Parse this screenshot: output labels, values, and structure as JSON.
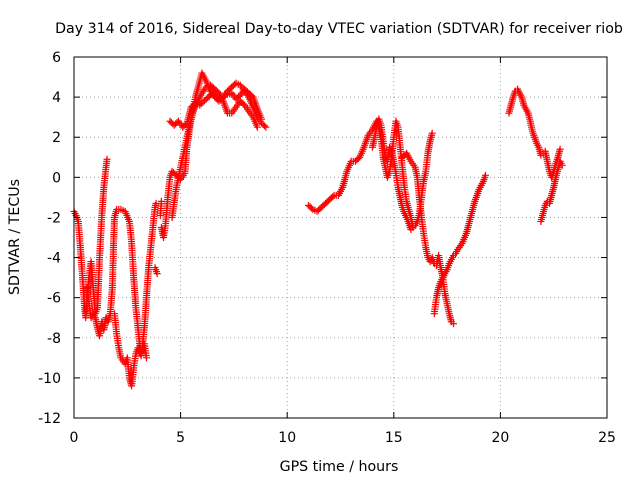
{
  "chart_data": {
    "type": "scatter",
    "title": "Day 314 of 2016, Sidereal Day-to-day VTEC variation (SDTVAR) for receiver riob",
    "xlabel": "GPS time / hours",
    "ylabel": "SDTVAR / TECUs",
    "xlim": [
      0,
      25
    ],
    "ylim": [
      -12,
      6
    ],
    "xticks": [
      0,
      5,
      10,
      15,
      20,
      25
    ],
    "yticks": [
      -12,
      -10,
      -8,
      -6,
      -4,
      -2,
      0,
      2,
      4,
      6
    ],
    "grid": true,
    "marker": "+",
    "color": "#ff0000",
    "series": [
      {
        "segments": [
          [
            [
              0.0,
              -1.7
            ],
            [
              0.1,
              -1.9
            ],
            [
              0.2,
              -2.2
            ],
            [
              0.3,
              -3.5
            ],
            [
              0.4,
              -5.0
            ],
            [
              0.5,
              -6.5
            ],
            [
              0.55,
              -7.0
            ],
            [
              0.6,
              -6.2
            ],
            [
              0.7,
              -5.0
            ],
            [
              0.8,
              -4.2
            ],
            [
              0.9,
              -5.5
            ],
            [
              1.0,
              -6.8
            ],
            [
              1.1,
              -6.5
            ],
            [
              1.2,
              -4.0
            ],
            [
              1.3,
              -2.0
            ],
            [
              1.4,
              -0.5
            ],
            [
              1.5,
              0.5
            ],
            [
              1.55,
              0.9
            ]
          ],
          [
            [
              0.6,
              -5.5
            ],
            [
              0.7,
              -6.3
            ],
            [
              0.8,
              -7.0
            ],
            [
              0.9,
              -6.8
            ],
            [
              1.0,
              -7.0
            ],
            [
              1.1,
              -7.5
            ],
            [
              1.2,
              -7.9
            ],
            [
              1.3,
              -7.2
            ],
            [
              1.4,
              -7.6
            ],
            [
              1.5,
              -7.0
            ],
            [
              1.6,
              -7.2
            ],
            [
              1.7,
              -6.8
            ],
            [
              1.8,
              -5.5
            ],
            [
              1.85,
              -3.5
            ],
            [
              1.9,
              -2.0
            ],
            [
              2.0,
              -1.6
            ],
            [
              2.2,
              -1.6
            ],
            [
              2.4,
              -1.7
            ],
            [
              2.6,
              -2.2
            ],
            [
              2.7,
              -3.2
            ],
            [
              2.8,
              -5.0
            ],
            [
              2.9,
              -6.5
            ],
            [
              3.0,
              -7.5
            ],
            [
              3.1,
              -8.5
            ],
            [
              3.15,
              -8.9
            ],
            [
              3.2,
              -8.5
            ],
            [
              3.3,
              -7.5
            ],
            [
              3.4,
              -6.0
            ],
            [
              3.5,
              -4.5
            ],
            [
              3.6,
              -3.5
            ],
            [
              3.7,
              -2.5
            ],
            [
              3.8,
              -1.5
            ],
            [
              3.85,
              -1.3
            ]
          ],
          [
            [
              1.9,
              -6.8
            ],
            [
              2.0,
              -7.8
            ],
            [
              2.1,
              -8.5
            ],
            [
              2.2,
              -9.0
            ],
            [
              2.4,
              -9.3
            ],
            [
              2.5,
              -9.0
            ],
            [
              2.6,
              -10.0
            ],
            [
              2.7,
              -10.4
            ],
            [
              2.8,
              -9.5
            ],
            [
              2.9,
              -8.8
            ],
            [
              3.0,
              -8.5
            ],
            [
              3.1,
              -8.8
            ],
            [
              3.2,
              -8.6
            ],
            [
              3.3,
              -8.3
            ],
            [
              3.4,
              -9.0
            ]
          ],
          [
            [
              3.8,
              -4.5
            ],
            [
              3.9,
              -4.8
            ]
          ],
          [
            [
              4.05,
              -1.9
            ],
            [
              4.1,
              -1.2
            ]
          ],
          [
            [
              4.1,
              -2.5
            ],
            [
              4.2,
              -3.0
            ],
            [
              4.3,
              -2.3
            ],
            [
              4.4,
              -1.0
            ],
            [
              4.5,
              0.0
            ],
            [
              4.6,
              0.3
            ],
            [
              4.8,
              0.1
            ],
            [
              5.0,
              -0.1
            ],
            [
              5.2,
              0.2
            ],
            [
              5.3,
              1.5
            ],
            [
              5.5,
              3.0
            ],
            [
              5.7,
              4.0
            ],
            [
              5.9,
              4.8
            ],
            [
              6.0,
              5.2
            ],
            [
              6.2,
              4.8
            ],
            [
              6.4,
              4.3
            ],
            [
              6.6,
              4.0
            ],
            [
              6.8,
              3.8
            ],
            [
              7.0,
              4.0
            ],
            [
              7.2,
              4.3
            ],
            [
              7.4,
              4.5
            ],
            [
              7.6,
              4.7
            ],
            [
              7.8,
              4.6
            ],
            [
              8.0,
              4.3
            ],
            [
              8.2,
              4.0
            ],
            [
              8.4,
              3.5
            ],
            [
              8.6,
              3.0
            ],
            [
              8.8,
              2.7
            ],
            [
              9.0,
              2.5
            ]
          ],
          [
            [
              4.6,
              -2.0
            ],
            [
              4.8,
              -0.5
            ],
            [
              5.0,
              0.5
            ],
            [
              5.2,
              1.5
            ],
            [
              5.4,
              2.5
            ],
            [
              5.6,
              3.3
            ],
            [
              5.8,
              3.8
            ],
            [
              6.0,
              4.2
            ],
            [
              6.2,
              4.5
            ],
            [
              6.4,
              4.6
            ],
            [
              6.6,
              4.4
            ],
            [
              6.8,
              4.2
            ],
            [
              7.0,
              3.8
            ],
            [
              7.2,
              3.2
            ],
            [
              7.4,
              3.2
            ],
            [
              7.6,
              3.5
            ],
            [
              7.8,
              3.8
            ],
            [
              8.0,
              3.6
            ],
            [
              8.2,
              3.3
            ],
            [
              8.4,
              3.0
            ],
            [
              8.6,
              2.5
            ]
          ],
          [
            [
              4.5,
              2.8
            ],
            [
              4.7,
              2.6
            ],
            [
              4.9,
              2.8
            ],
            [
              5.1,
              2.5
            ],
            [
              5.3,
              2.7
            ],
            [
              5.5,
              3.5
            ],
            [
              5.7,
              3.7
            ],
            [
              5.9,
              3.6
            ],
            [
              6.2,
              3.9
            ],
            [
              6.5,
              4.2
            ],
            [
              6.8,
              3.9
            ],
            [
              7.1,
              4.1
            ],
            [
              7.4,
              4.2
            ],
            [
              7.6,
              3.9
            ],
            [
              7.8,
              4.1
            ],
            [
              8.0,
              4.4
            ],
            [
              8.2,
              4.2
            ],
            [
              8.4,
              4.0
            ],
            [
              8.6,
              3.4
            ],
            [
              8.8,
              2.9
            ]
          ],
          [
            [
              11.0,
              -1.4
            ],
            [
              11.2,
              -1.6
            ],
            [
              11.4,
              -1.7
            ],
            [
              11.6,
              -1.5
            ],
            [
              11.8,
              -1.3
            ],
            [
              12.0,
              -1.1
            ],
            [
              12.2,
              -0.9
            ],
            [
              12.4,
              -0.9
            ],
            [
              12.6,
              -0.5
            ],
            [
              12.8,
              0.3
            ],
            [
              13.0,
              0.8
            ],
            [
              13.2,
              0.8
            ],
            [
              13.4,
              1.0
            ],
            [
              13.6,
              1.5
            ],
            [
              13.8,
              2.1
            ],
            [
              14.0,
              2.4
            ],
            [
              14.2,
              2.8
            ],
            [
              14.3,
              2.5
            ],
            [
              14.4,
              2.0
            ],
            [
              14.5,
              1.0
            ],
            [
              14.6,
              0.5
            ],
            [
              14.7,
              0.0
            ],
            [
              14.8,
              0.3
            ],
            [
              14.9,
              1.0
            ],
            [
              15.0,
              2.0
            ],
            [
              15.1,
              2.8
            ],
            [
              15.2,
              2.5
            ],
            [
              15.3,
              1.5
            ],
            [
              15.4,
              0.5
            ],
            [
              15.5,
              -0.5
            ],
            [
              15.6,
              -1.2
            ],
            [
              15.7,
              -1.6
            ],
            [
              15.8,
              -2.0
            ],
            [
              15.9,
              -2.5
            ],
            [
              16.0,
              -2.4
            ],
            [
              16.1,
              -2.2
            ],
            [
              16.2,
              -1.8
            ],
            [
              16.3,
              -1.0
            ],
            [
              16.4,
              -0.2
            ],
            [
              16.5,
              0.3
            ],
            [
              16.6,
              1.2
            ],
            [
              16.7,
              1.8
            ],
            [
              16.8,
              2.2
            ]
          ],
          [
            [
              14.0,
              1.5
            ],
            [
              14.1,
              2.0
            ],
            [
              14.2,
              2.6
            ],
            [
              14.3,
              2.9
            ],
            [
              14.4,
              2.6
            ],
            [
              14.5,
              1.8
            ],
            [
              14.6,
              1.0
            ],
            [
              14.7,
              0.8
            ],
            [
              14.8,
              1.5
            ],
            [
              14.9,
              1.3
            ],
            [
              15.0,
              0.8
            ],
            [
              15.1,
              0.2
            ],
            [
              15.2,
              -0.5
            ],
            [
              15.3,
              -1.0
            ],
            [
              15.4,
              -1.5
            ],
            [
              15.5,
              -1.8
            ],
            [
              15.6,
              -2.0
            ],
            [
              15.7,
              -2.3
            ],
            [
              15.8,
              -2.6
            ],
            [
              15.9,
              -2.5
            ]
          ],
          [
            [
              15.4,
              1.0
            ],
            [
              15.6,
              1.2
            ],
            [
              15.8,
              0.8
            ],
            [
              16.0,
              0.5
            ],
            [
              16.1,
              0.0
            ],
            [
              16.2,
              -1.0
            ],
            [
              16.3,
              -2.0
            ],
            [
              16.4,
              -2.8
            ],
            [
              16.5,
              -3.5
            ],
            [
              16.6,
              -4.0
            ],
            [
              16.7,
              -4.2
            ],
            [
              16.8,
              -4.0
            ],
            [
              16.9,
              -4.3
            ],
            [
              17.0,
              -4.4
            ],
            [
              17.1,
              -3.9
            ],
            [
              17.2,
              -4.5
            ],
            [
              17.3,
              -5.0
            ],
            [
              17.4,
              -5.8
            ],
            [
              17.5,
              -6.3
            ],
            [
              17.6,
              -6.8
            ],
            [
              17.7,
              -7.2
            ],
            [
              17.8,
              -7.3
            ]
          ],
          [
            [
              16.9,
              -6.8
            ],
            [
              17.0,
              -6.0
            ],
            [
              17.1,
              -5.5
            ],
            [
              17.2,
              -5.2
            ],
            [
              17.3,
              -5.0
            ],
            [
              17.4,
              -4.8
            ],
            [
              17.5,
              -4.6
            ],
            [
              17.6,
              -4.3
            ],
            [
              17.7,
              -4.1
            ],
            [
              17.8,
              -3.9
            ],
            [
              17.9,
              -3.8
            ],
            [
              18.0,
              -3.6
            ],
            [
              18.2,
              -3.3
            ],
            [
              18.4,
              -2.8
            ],
            [
              18.6,
              -2.0
            ],
            [
              18.8,
              -1.2
            ],
            [
              19.0,
              -0.6
            ],
            [
              19.2,
              -0.2
            ],
            [
              19.3,
              0.1
            ]
          ],
          [
            [
              20.4,
              3.2
            ],
            [
              20.5,
              3.6
            ],
            [
              20.6,
              4.0
            ],
            [
              20.7,
              4.3
            ],
            [
              20.8,
              4.4
            ],
            [
              20.9,
              4.2
            ],
            [
              21.0,
              4.0
            ],
            [
              21.1,
              3.6
            ],
            [
              21.2,
              3.4
            ],
            [
              21.3,
              3.2
            ],
            [
              21.4,
              2.8
            ],
            [
              21.5,
              2.3
            ],
            [
              21.6,
              2.0
            ],
            [
              21.7,
              1.7
            ],
            [
              21.8,
              1.5
            ],
            [
              21.9,
              1.1
            ],
            [
              22.0,
              1.2
            ],
            [
              22.1,
              1.3
            ],
            [
              22.2,
              0.8
            ],
            [
              22.3,
              0.3
            ],
            [
              22.4,
              0.0
            ],
            [
              22.5,
              0.3
            ],
            [
              22.6,
              0.7
            ],
            [
              22.7,
              1.0
            ],
            [
              22.8,
              1.4
            ]
          ],
          [
            [
              21.9,
              -2.2
            ],
            [
              22.0,
              -1.8
            ],
            [
              22.1,
              -1.4
            ],
            [
              22.2,
              -1.2
            ],
            [
              22.3,
              -1.3
            ],
            [
              22.4,
              -0.9
            ],
            [
              22.5,
              -0.5
            ],
            [
              22.6,
              0.0
            ],
            [
              22.7,
              0.4
            ],
            [
              22.8,
              0.8
            ],
            [
              22.9,
              0.6
            ]
          ]
        ]
      }
    ]
  }
}
